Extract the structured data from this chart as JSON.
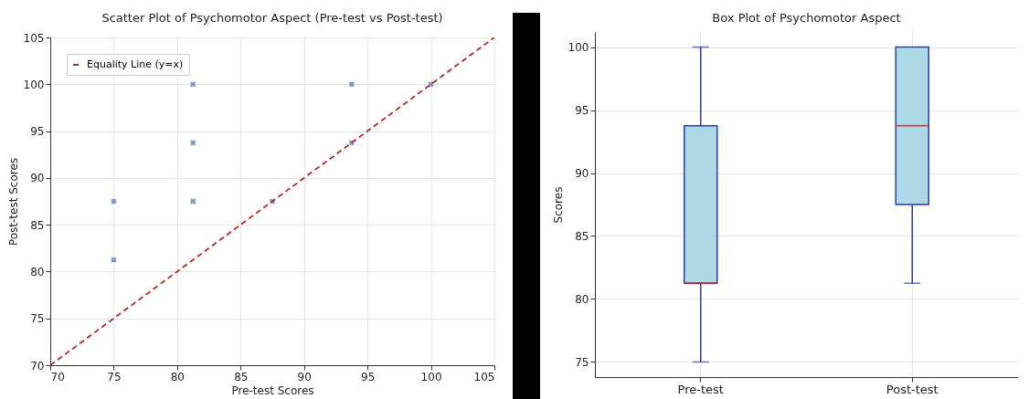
{
  "chart_data": [
    {
      "type": "scatter",
      "title": "Scatter Plot of Psychomotor Aspect (Pre-test vs Post-test)",
      "xlabel": "Pre-test Scores",
      "ylabel": "Post-test Scores",
      "xlim": [
        70,
        105
      ],
      "ylim": [
        70,
        105
      ],
      "xticks": [
        70,
        75,
        80,
        85,
        90,
        95,
        100,
        105
      ],
      "yticks": [
        70,
        75,
        80,
        85,
        90,
        95,
        100,
        105
      ],
      "grid": true,
      "legend": "top left",
      "marker": "cross",
      "x": [
        75,
        75,
        81.25,
        81.25,
        81.25,
        87.5,
        93.75,
        93.75,
        100
      ],
      "series": [
        {
          "color": "#4a6aa8",
          "values": [
            87.5,
            81.25,
            100,
            93.75,
            87.5,
            87.5,
            100,
            93.75,
            100
          ]
        },
        {
          "type": "line",
          "name": "Equality Line (y=x)",
          "color": "#b22a2a",
          "line_style": "dashed",
          "marker": "none",
          "x": [
            70,
            105
          ],
          "values": [
            70,
            105
          ]
        }
      ]
    },
    {
      "type": "box",
      "title": "Box Plot of Psychomotor Aspect",
      "ylabel": "Scores",
      "categories": [
        "Pre-test",
        "Post-test"
      ],
      "ylim": [
        73.8,
        101.2
      ],
      "yticks": [
        75,
        80,
        85,
        90,
        95,
        100
      ],
      "grid": true,
      "series": [
        {
          "color": "#add8e6",
          "boxes": [
            {
              "low": 75,
              "q1": 81.25,
              "median": 81.25,
              "q3": 93.75,
              "high": 100
            },
            {
              "low": 81.25,
              "q1": 87.5,
              "median": 93.75,
              "q3": 100,
              "high": 100
            }
          ]
        }
      ]
    }
  ]
}
